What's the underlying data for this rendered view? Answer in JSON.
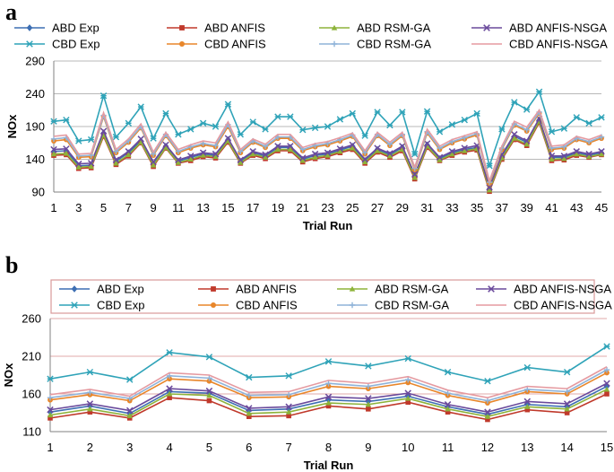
{
  "chart_data": [
    {
      "panel": "a",
      "type": "line",
      "xlabel": "Trial Run",
      "ylabel": "NOx",
      "ylim": [
        90,
        290
      ],
      "yticks": [
        90,
        140,
        190,
        240,
        290
      ],
      "xticks": [
        1,
        3,
        5,
        7,
        9,
        11,
        13,
        15,
        17,
        19,
        21,
        23,
        25,
        27,
        29,
        31,
        33,
        35,
        37,
        39,
        41,
        43,
        45
      ],
      "x": [
        1,
        2,
        3,
        4,
        5,
        6,
        7,
        8,
        9,
        10,
        11,
        12,
        13,
        14,
        15,
        16,
        17,
        18,
        19,
        20,
        21,
        22,
        23,
        24,
        25,
        26,
        27,
        28,
        29,
        30,
        31,
        32,
        33,
        34,
        35,
        36,
        37,
        38,
        39,
        40,
        41,
        42,
        43,
        44,
        45
      ],
      "grid": "horizontal",
      "legend": "top",
      "series": [
        {
          "name": "ABD Exp",
          "color": "#3d6fb3",
          "marker": "diamond",
          "values": [
            152,
            153,
            130,
            131,
            180,
            137,
            150,
            168,
            133,
            160,
            137,
            143,
            148,
            146,
            170,
            137,
            150,
            145,
            158,
            158,
            140,
            146,
            148,
            154,
            160,
            138,
            155,
            147,
            158,
            115,
            162,
            141,
            150,
            155,
            158,
            95,
            145,
            175,
            166,
            200,
            143,
            143,
            150,
            146,
            150
          ]
        },
        {
          "name": "ABD ANFIS",
          "color": "#c0392b",
          "marker": "square",
          "values": [
            146,
            147,
            126,
            127,
            175,
            132,
            145,
            165,
            129,
            157,
            134,
            138,
            144,
            142,
            166,
            134,
            146,
            141,
            153,
            153,
            136,
            141,
            144,
            150,
            155,
            134,
            151,
            143,
            153,
            110,
            158,
            138,
            146,
            151,
            154,
            91,
            140,
            170,
            161,
            196,
            138,
            139,
            146,
            143,
            147
          ]
        },
        {
          "name": "ABD RSM-GA",
          "color": "#8db33a",
          "marker": "triangle",
          "values": [
            148,
            149,
            128,
            129,
            177,
            134,
            147,
            166,
            131,
            158,
            135,
            140,
            146,
            144,
            168,
            135,
            148,
            143,
            155,
            155,
            138,
            143,
            146,
            152,
            157,
            136,
            153,
            145,
            155,
            112,
            160,
            139,
            148,
            153,
            156,
            93,
            142,
            172,
            163,
            198,
            140,
            141,
            148,
            144,
            148
          ]
        },
        {
          "name": "ABD ANFIS-NSGA",
          "color": "#6a4a9c",
          "marker": "x",
          "values": [
            155,
            156,
            133,
            134,
            183,
            139,
            152,
            171,
            136,
            162,
            139,
            145,
            150,
            148,
            172,
            139,
            152,
            147,
            160,
            160,
            142,
            148,
            150,
            156,
            162,
            140,
            157,
            149,
            160,
            117,
            164,
            143,
            152,
            157,
            161,
            97,
            147,
            178,
            168,
            202,
            145,
            145,
            152,
            148,
            152
          ]
        },
        {
          "name": "CBD Exp",
          "color": "#2fa3b8",
          "marker": "x-bar",
          "values": [
            198,
            200,
            168,
            170,
            237,
            174,
            195,
            220,
            172,
            210,
            178,
            186,
            195,
            190,
            224,
            178,
            197,
            186,
            205,
            205,
            185,
            188,
            190,
            201,
            210,
            176,
            212,
            192,
            212,
            148,
            213,
            182,
            193,
            200,
            210,
            130,
            186,
            227,
            216,
            243,
            182,
            187,
            204,
            195,
            204
          ]
        },
        {
          "name": "CBD ANFIS",
          "color": "#e8862a",
          "marker": "circle",
          "values": [
            168,
            170,
            143,
            144,
            205,
            150,
            166,
            188,
            146,
            176,
            150,
            157,
            162,
            159,
            190,
            150,
            166,
            158,
            172,
            172,
            153,
            159,
            162,
            168,
            175,
            148,
            176,
            161,
            176,
            124,
            180,
            155,
            165,
            171,
            177,
            103,
            155,
            192,
            183,
            210,
            155,
            157,
            170,
            165,
            172
          ]
        },
        {
          "name": "CBD RSM-GA",
          "color": "#8fb3d9",
          "marker": "plus",
          "values": [
            171,
            173,
            145,
            146,
            207,
            152,
            168,
            190,
            148,
            178,
            152,
            159,
            164,
            161,
            193,
            152,
            168,
            160,
            174,
            174,
            155,
            161,
            164,
            170,
            177,
            150,
            178,
            163,
            178,
            126,
            182,
            157,
            167,
            173,
            179,
            105,
            157,
            194,
            185,
            212,
            157,
            159,
            172,
            167,
            174
          ]
        },
        {
          "name": "CBD ANFIS-NSGA",
          "color": "#e59aa0",
          "marker": "line",
          "values": [
            175,
            177,
            148,
            149,
            211,
            155,
            171,
            194,
            151,
            181,
            155,
            162,
            168,
            165,
            197,
            155,
            171,
            163,
            178,
            178,
            158,
            164,
            167,
            173,
            180,
            153,
            181,
            166,
            181,
            128,
            186,
            160,
            170,
            176,
            182,
            107,
            160,
            198,
            189,
            215,
            160,
            162,
            175,
            170,
            177
          ]
        }
      ]
    },
    {
      "panel": "b",
      "type": "line",
      "xlabel": "Trial Run",
      "ylabel": "NOx",
      "ylim": [
        110,
        260
      ],
      "yticks": [
        110,
        160,
        210,
        260
      ],
      "xticks": [
        1,
        2,
        3,
        4,
        5,
        6,
        7,
        8,
        9,
        10,
        11,
        12,
        13,
        14,
        15
      ],
      "x": [
        1,
        2,
        3,
        4,
        5,
        6,
        7,
        8,
        9,
        10,
        11,
        12,
        13,
        14,
        15
      ],
      "grid": "horizontal",
      "legend": "top",
      "series": [
        {
          "name": "ABD Exp",
          "color": "#3d6fb3",
          "marker": "diamond",
          "values": [
            136,
            144,
            134,
            163,
            161,
            138,
            140,
            152,
            150,
            157,
            143,
            133,
            146,
            143,
            170
          ]
        },
        {
          "name": "ABD ANFIS",
          "color": "#c0392b",
          "marker": "square",
          "values": [
            128,
            136,
            128,
            155,
            151,
            130,
            131,
            144,
            140,
            149,
            136,
            126,
            139,
            135,
            160
          ]
        },
        {
          "name": "ABD RSM-GA",
          "color": "#8db33a",
          "marker": "triangle",
          "values": [
            132,
            140,
            131,
            160,
            158,
            134,
            136,
            148,
            146,
            154,
            140,
            130,
            143,
            140,
            166
          ]
        },
        {
          "name": "ABD ANFIS-NSGA",
          "color": "#6a4a9c",
          "marker": "x",
          "values": [
            139,
            147,
            138,
            167,
            164,
            141,
            143,
            156,
            154,
            161,
            146,
            136,
            150,
            147,
            174
          ]
        },
        {
          "name": "CBD Exp",
          "color": "#2fa3b8",
          "marker": "x-bar",
          "values": [
            180,
            189,
            179,
            215,
            209,
            182,
            184,
            203,
            197,
            207,
            189,
            177,
            195,
            189,
            223
          ]
        },
        {
          "name": "CBD ANFIS",
          "color": "#e8862a",
          "marker": "circle",
          "values": [
            152,
            159,
            151,
            180,
            177,
            155,
            156,
            170,
            167,
            175,
            158,
            148,
            163,
            160,
            188
          ]
        },
        {
          "name": "CBD RSM-GA",
          "color": "#8fb3d9",
          "marker": "plus",
          "values": [
            155,
            162,
            154,
            184,
            181,
            158,
            159,
            174,
            170,
            179,
            161,
            151,
            166,
            163,
            192
          ]
        },
        {
          "name": "CBD ANFIS-NSGA",
          "color": "#e59aa0",
          "marker": "line",
          "values": [
            159,
            166,
            157,
            188,
            185,
            162,
            163,
            178,
            174,
            183,
            165,
            155,
            170,
            167,
            196
          ]
        }
      ]
    }
  ]
}
